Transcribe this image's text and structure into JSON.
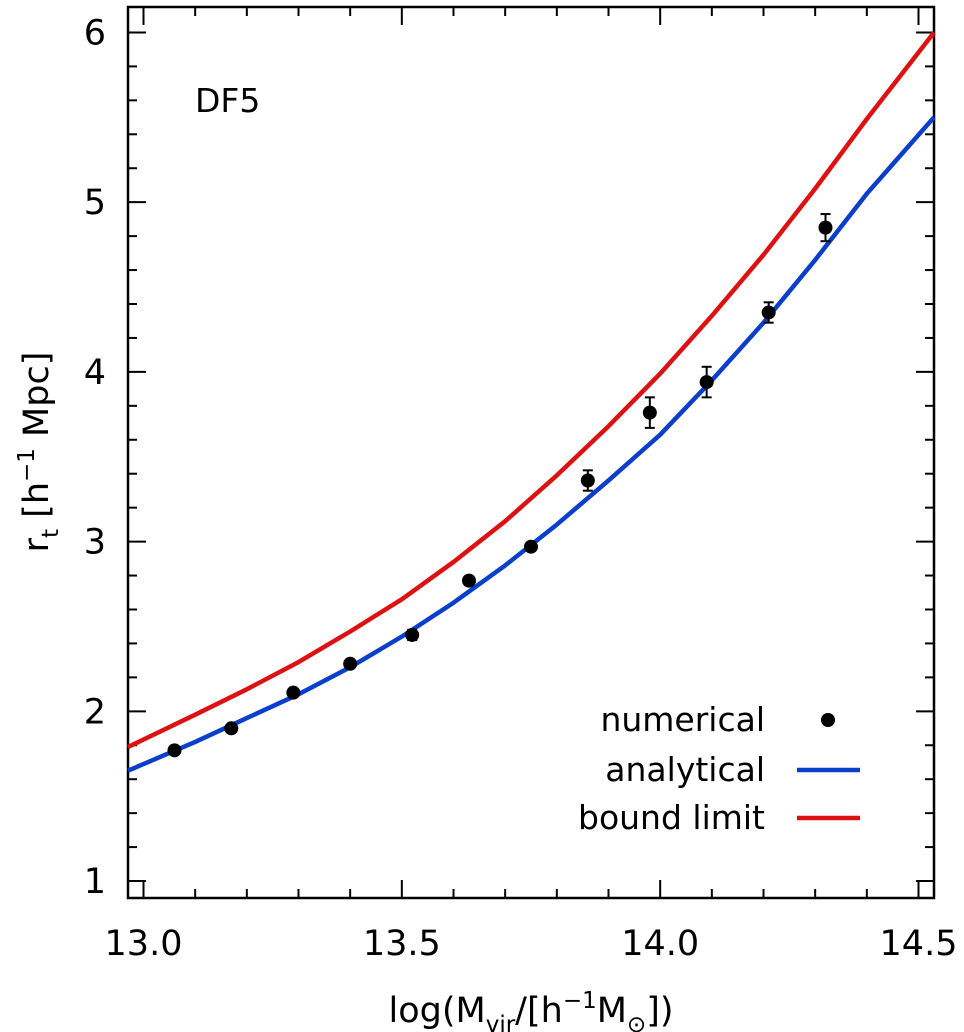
{
  "chart_data": {
    "type": "scatter",
    "annotation": "DF5",
    "xlabel": {
      "parts": [
        {
          "t": "log(M",
          "sub": false,
          "sup": false
        },
        {
          "t": "vir",
          "sub": true,
          "sup": false
        },
        {
          "t": "/[h",
          "sub": false,
          "sup": false
        },
        {
          "t": "−1",
          "sub": false,
          "sup": true
        },
        {
          "t": "M",
          "sub": false,
          "sup": false
        },
        {
          "t": "⊙",
          "sub": true,
          "sup": false
        },
        {
          "t": "])",
          "sub": false,
          "sup": false
        }
      ]
    },
    "ylabel": {
      "parts": [
        {
          "t": "r",
          "sub": false,
          "sup": false
        },
        {
          "t": "t",
          "sub": true,
          "sup": false
        },
        {
          "t": " [h",
          "sub": false,
          "sup": false
        },
        {
          "t": "−1",
          "sub": false,
          "sup": true
        },
        {
          "t": " Mpc]",
          "sub": false,
          "sup": false
        }
      ]
    },
    "xlim": [
      12.97,
      14.53
    ],
    "ylim": [
      0.9,
      6.15
    ],
    "xticks": [
      13.0,
      13.5,
      14.0,
      14.5
    ],
    "xtick_labels": [
      "13.0",
      "13.5",
      "14.0",
      "14.5"
    ],
    "x_minor_step": 0.1,
    "yticks": [
      1,
      2,
      3,
      4,
      5,
      6
    ],
    "ytick_labels": [
      "1",
      "2",
      "3",
      "4",
      "5",
      "6"
    ],
    "y_minor_step": 0.2,
    "grid": false,
    "legend_position": "bottom-right",
    "series": [
      {
        "name": "numerical",
        "kind": "points",
        "color": "#000000",
        "x": [
          13.06,
          13.17,
          13.29,
          13.4,
          13.52,
          13.63,
          13.75,
          13.86,
          13.98,
          14.09,
          14.21,
          14.32
        ],
        "y": [
          1.77,
          1.9,
          2.11,
          2.28,
          2.45,
          2.77,
          2.97,
          3.36,
          3.76,
          3.94,
          4.35,
          4.85
        ],
        "err": [
          0.02,
          0.02,
          0.02,
          0.02,
          0.03,
          0.02,
          0.02,
          0.06,
          0.09,
          0.09,
          0.06,
          0.08
        ]
      },
      {
        "name": "analytical",
        "kind": "line",
        "color": "#0a3fcc",
        "x": [
          12.97,
          13.1,
          13.2,
          13.3,
          13.4,
          13.5,
          13.6,
          13.7,
          13.8,
          13.9,
          14.0,
          14.1,
          14.2,
          14.3,
          14.4,
          14.53
        ],
        "y": [
          1.65,
          1.82,
          1.96,
          2.1,
          2.26,
          2.44,
          2.64,
          2.86,
          3.1,
          3.36,
          3.63,
          3.95,
          4.29,
          4.66,
          5.05,
          5.5
        ]
      },
      {
        "name": "bound limit",
        "kind": "line",
        "color": "#dd1111",
        "x": [
          12.97,
          13.1,
          13.2,
          13.3,
          13.4,
          13.5,
          13.6,
          13.7,
          13.8,
          13.9,
          14.0,
          14.1,
          14.2,
          14.3,
          14.4,
          14.53
        ],
        "y": [
          1.79,
          1.98,
          2.13,
          2.29,
          2.47,
          2.66,
          2.88,
          3.12,
          3.39,
          3.68,
          3.99,
          4.33,
          4.69,
          5.08,
          5.49,
          6.0
        ]
      }
    ]
  }
}
